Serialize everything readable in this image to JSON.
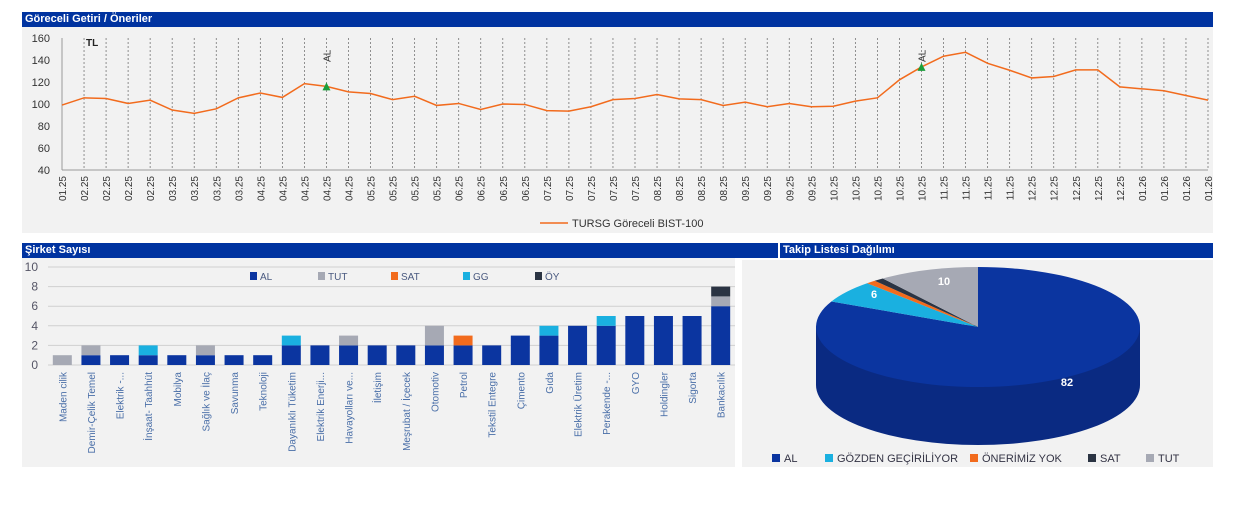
{
  "colors": {
    "header": "#0033a0",
    "line": "#f26b1d",
    "marker": "#1a9e3a",
    "AL": "#0b35a0",
    "TUT": "#a6a9b4",
    "SAT": "#f26b1d",
    "GG": "#1ab0e0",
    "OY": "#2b3443"
  },
  "line_panel": {
    "title": "Göreceli Getiri / Öneriler"
  },
  "bar_panel": {
    "title": "Şirket Sayısı"
  },
  "pie_panel": {
    "title": "Takip Listesi Dağılımı"
  },
  "chart_data": [
    {
      "type": "line",
      "ylim": [
        40,
        160
      ],
      "yticks": [
        40,
        60,
        80,
        100,
        120,
        140,
        160
      ],
      "grid": "vertical dashed",
      "currency_label": "TL",
      "categories": [
        "01.25",
        "02.25",
        "02.25",
        "02.25",
        "02.25",
        "03.25",
        "03.25",
        "03.25",
        "03.25",
        "04.25",
        "04.25",
        "04.25",
        "04.25",
        "04.25",
        "05.25",
        "05.25",
        "05.25",
        "05.25",
        "06.25",
        "06.25",
        "06.25",
        "06.25",
        "07.25",
        "07.25",
        "07.25",
        "07.25",
        "07.25",
        "08.25",
        "08.25",
        "08.25",
        "08.25",
        "09.25",
        "09.25",
        "09.25",
        "09.25",
        "10.25",
        "10.25",
        "10.25",
        "10.25",
        "10.25",
        "11.25",
        "11.25",
        "11.25",
        "11.25",
        "12.25",
        "12.25",
        "12.25",
        "12.25",
        "12.25",
        "01.26",
        "01.26",
        "01.26",
        "01.26"
      ],
      "series": [
        {
          "name": "TURSG Göreceli BIST-100",
          "values": [
            99,
            105.6,
            105,
            100.5,
            103.5,
            94.5,
            91.5,
            95.6,
            105.6,
            110,
            106,
            118.5,
            116,
            111,
            109.5,
            104,
            107,
            98.7,
            100.5,
            95,
            100,
            99.6,
            94,
            93.5,
            97.5,
            104,
            105,
            108.6,
            104.7,
            104,
            98.7,
            101.7,
            97.5,
            100.5,
            97.5,
            98,
            102.6,
            105.6,
            122,
            133.7,
            143.4,
            147,
            137,
            130.7,
            123.7,
            125,
            131,
            131,
            115.6,
            113.8,
            112,
            107.7,
            103.5
          ]
        }
      ],
      "markers": [
        {
          "category_index": 12,
          "value": 116,
          "label": "AL"
        },
        {
          "category_index": 39,
          "value": 133.7,
          "label": "AL"
        }
      ],
      "legend": "bottom"
    },
    {
      "type": "bar",
      "stacked": true,
      "ylim": [
        0,
        10
      ],
      "yticks": [
        0,
        2,
        4,
        6,
        8,
        10
      ],
      "legend": "top",
      "categories": [
        "Maden cilik",
        "Demir-Çelik Temel",
        "Elektrik -...",
        "İnşaat- Taahhüt",
        "Mobilya",
        "Sağlık ve İlaç",
        "Savunma",
        "Teknoloji",
        "Dayanıklı Tüketim",
        "Elektrik Enerji...",
        "Havayolları ve...",
        "İletişim",
        "Meşrubat / İçecek",
        "Otomotiv",
        "Petrol",
        "Tekstil Entegre",
        "Çimento",
        "Gıda",
        "Elektrik Üretim",
        "Perakende -...",
        "GYO",
        "Holdingler",
        "Sigorta",
        "Bankacılık"
      ],
      "series": [
        {
          "name": "AL",
          "key": "AL",
          "values": [
            0,
            1,
            1,
            1,
            1,
            1,
            1,
            1,
            2,
            2,
            2,
            2,
            2,
            2,
            2,
            2,
            3,
            3,
            4,
            4,
            5,
            5,
            5,
            6
          ]
        },
        {
          "name": "TUT",
          "key": "TUT",
          "values": [
            1,
            1,
            0,
            0,
            0,
            1,
            0,
            0,
            0,
            0,
            1,
            0,
            0,
            2,
            0,
            0,
            0,
            0,
            0,
            0,
            0,
            0,
            0,
            1
          ]
        },
        {
          "name": "SAT",
          "key": "SAT",
          "values": [
            0,
            0,
            0,
            0,
            0,
            0,
            0,
            0,
            0,
            0,
            0,
            0,
            0,
            0,
            1,
            0,
            0,
            0,
            0,
            0,
            0,
            0,
            0,
            0
          ]
        },
        {
          "name": "GG",
          "key": "GG",
          "values": [
            0,
            0,
            0,
            1,
            0,
            0,
            0,
            0,
            1,
            0,
            0,
            0,
            0,
            0,
            0,
            0,
            0,
            1,
            0,
            1,
            0,
            0,
            0,
            0
          ]
        },
        {
          "name": "ÖY",
          "key": "OY",
          "values": [
            0,
            0,
            0,
            0,
            0,
            0,
            0,
            0,
            0,
            0,
            0,
            0,
            0,
            0,
            0,
            0,
            0,
            0,
            0,
            0,
            0,
            0,
            0,
            1
          ]
        }
      ]
    },
    {
      "type": "pie",
      "style": "3d",
      "legend": "bottom",
      "slices": [
        {
          "label": "AL",
          "value": 82,
          "key": "AL"
        },
        {
          "label": "GÖZDEN GEÇİRİLİYOR",
          "value": 6,
          "key": "GG"
        },
        {
          "label": "ÖNERİMİZ YOK",
          "value": 1,
          "key": "SAT"
        },
        {
          "label": "SAT",
          "value": 1,
          "key": "OY"
        },
        {
          "label": "TUT",
          "value": 10,
          "key": "TUT"
        }
      ]
    }
  ]
}
